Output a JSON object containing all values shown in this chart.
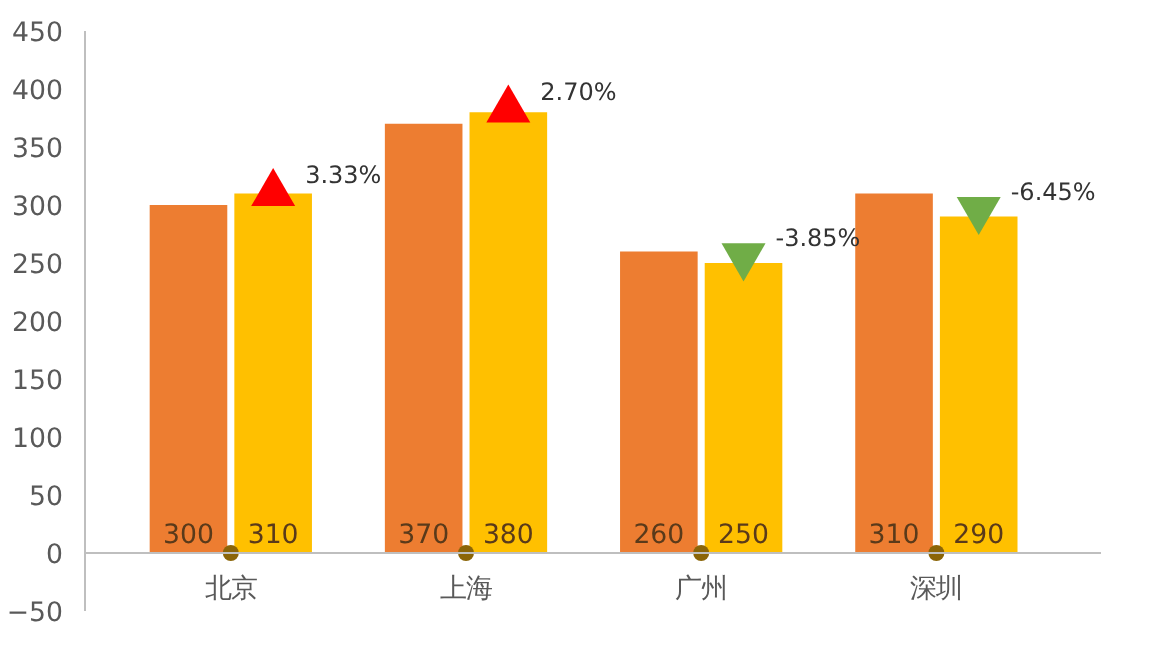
{
  "chart_data": {
    "type": "bar",
    "categories": [
      "北京",
      "上海",
      "广州",
      "深圳"
    ],
    "series": [
      {
        "color": "#ed7d31",
        "values": [
          300,
          370,
          260,
          310
        ],
        "value_labels": [
          "300",
          "370",
          "260",
          "310"
        ]
      },
      {
        "color": "#ffc000",
        "values": [
          310,
          380,
          250,
          290
        ],
        "value_labels": [
          "310",
          "380",
          "250",
          "290"
        ]
      },
      {
        "type": "scatter",
        "marker": "triangle",
        "color": "#ff0000",
        "values": [
          310,
          382,
          null,
          null
        ]
      },
      {
        "type": "scatter",
        "marker": "triangle_down",
        "color": "#70ad47",
        "values": [
          null,
          null,
          256,
          296
        ]
      },
      {
        "type": "scatter",
        "marker": "circle",
        "color": "#8b6508",
        "values": [
          0,
          0,
          0,
          0
        ]
      }
    ],
    "annotations": [
      "3.33%",
      "2.70%",
      "-3.85%",
      "-6.45%"
    ],
    "ylim": [
      -50,
      450
    ],
    "yticks": [
      -50,
      0,
      50,
      100,
      150,
      200,
      250,
      300,
      350,
      400,
      450
    ],
    "grid": false
  }
}
